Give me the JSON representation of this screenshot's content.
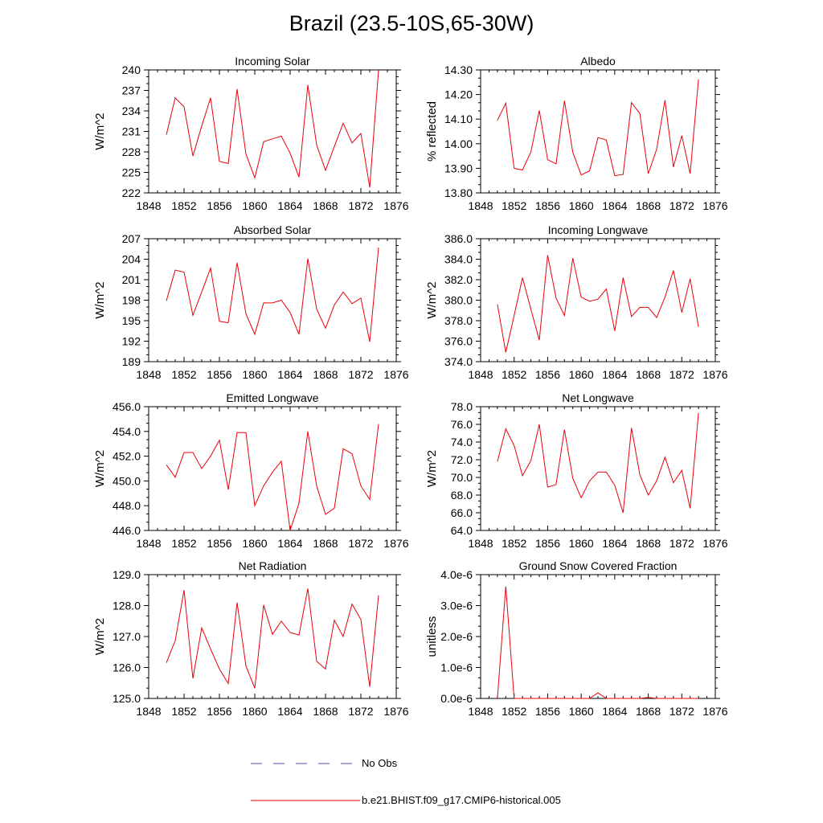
{
  "title": "Brazil (23.5-10S,65-30W)",
  "colors": {
    "model": "#e8000b",
    "obs": "#4a4aa8",
    "axis": "#000000"
  },
  "legend": {
    "obs_label": "No Obs",
    "model_label": "b.e21.BHIST.f09_g17.CMIP6-historical.005"
  },
  "chart_data": [
    {
      "type": "line",
      "title": "Incoming Solar",
      "xlabel": "",
      "ylabel": "W/m^2",
      "xlim": [
        1848,
        1876
      ],
      "ylim": [
        222,
        240
      ],
      "xticks": [
        1848,
        1852,
        1856,
        1860,
        1864,
        1868,
        1872,
        1876
      ],
      "xtick_labels": [
        "1848",
        "1852",
        "1856",
        "1860",
        "1864",
        "1868",
        "1872",
        "1876"
      ],
      "yticks": [
        222,
        225,
        228,
        231,
        234,
        237,
        240
      ],
      "ytick_labels": [
        "222",
        "225",
        "228",
        "231",
        "234",
        "237",
        "240"
      ],
      "series": [
        {
          "name": "b.e21.BHIST.f09_g17.CMIP6-historical.005",
          "x": [
            1850,
            1851,
            1852,
            1853,
            1854,
            1855,
            1856,
            1857,
            1858,
            1859,
            1860,
            1861,
            1862,
            1863,
            1864,
            1865,
            1866,
            1867,
            1868,
            1869,
            1870,
            1871,
            1872,
            1873,
            1874
          ],
          "values": [
            230.5,
            235.9,
            234.6,
            227.4,
            231.8,
            235.9,
            226.6,
            226.3,
            237.2,
            227.7,
            224.2,
            229.5,
            229.9,
            230.3,
            227.8,
            224.3,
            237.8,
            229.0,
            225.3,
            228.8,
            232.2,
            229.3,
            230.7,
            222.8,
            240.0
          ]
        }
      ]
    },
    {
      "type": "line",
      "title": "Albedo",
      "xlabel": "",
      "ylabel": "% reflected",
      "xlim": [
        1848,
        1876
      ],
      "ylim": [
        13.8,
        14.3
      ],
      "xticks": [
        1848,
        1852,
        1856,
        1860,
        1864,
        1868,
        1872,
        1876
      ],
      "xtick_labels": [
        "1848",
        "1852",
        "1856",
        "1860",
        "1864",
        "1868",
        "1872",
        "1876"
      ],
      "yticks": [
        13.8,
        13.9,
        14.0,
        14.1,
        14.2,
        14.3
      ],
      "ytick_labels": [
        "13.80",
        "13.90",
        "14.00",
        "14.10",
        "14.20",
        "14.30"
      ],
      "series": [
        {
          "name": "b.e21.BHIST.f09_g17.CMIP6-historical.005",
          "x": [
            1850,
            1851,
            1852,
            1853,
            1854,
            1855,
            1856,
            1857,
            1858,
            1859,
            1860,
            1861,
            1862,
            1863,
            1864,
            1865,
            1866,
            1867,
            1868,
            1869,
            1870,
            1871,
            1872,
            1873,
            1874
          ],
          "values": [
            14.095,
            14.165,
            13.9,
            13.893,
            13.967,
            14.135,
            13.935,
            13.918,
            14.175,
            13.965,
            13.873,
            13.89,
            14.025,
            14.015,
            13.87,
            13.875,
            14.167,
            14.123,
            13.878,
            13.977,
            14.177,
            13.905,
            14.033,
            13.878,
            14.262
          ]
        }
      ]
    },
    {
      "type": "line",
      "title": "Absorbed Solar",
      "xlabel": "",
      "ylabel": "W/m^2",
      "xlim": [
        1848,
        1876
      ],
      "ylim": [
        189,
        207
      ],
      "xticks": [
        1848,
        1852,
        1856,
        1860,
        1864,
        1868,
        1872,
        1876
      ],
      "xtick_labels": [
        "1848",
        "1852",
        "1856",
        "1860",
        "1864",
        "1868",
        "1872",
        "1876"
      ],
      "yticks": [
        189,
        192,
        195,
        198,
        201,
        204,
        207
      ],
      "ytick_labels": [
        "189",
        "192",
        "195",
        "198",
        "201",
        "204",
        "207"
      ],
      "series": [
        {
          "name": "b.e21.BHIST.f09_g17.CMIP6-historical.005",
          "x": [
            1850,
            1851,
            1852,
            1853,
            1854,
            1855,
            1856,
            1857,
            1858,
            1859,
            1860,
            1861,
            1862,
            1863,
            1864,
            1865,
            1866,
            1867,
            1868,
            1869,
            1870,
            1871,
            1872,
            1873,
            1874
          ],
          "values": [
            197.9,
            202.4,
            202.1,
            195.8,
            199.2,
            202.7,
            194.9,
            194.7,
            203.5,
            196.0,
            193.0,
            197.6,
            197.6,
            198.0,
            196.2,
            193.0,
            204.1,
            196.7,
            193.9,
            197.3,
            199.2,
            197.5,
            198.3,
            191.9,
            205.7
          ]
        }
      ]
    },
    {
      "type": "line",
      "title": "Incoming Longwave",
      "xlabel": "",
      "ylabel": "W/m^2",
      "xlim": [
        1848,
        1876
      ],
      "ylim": [
        374.0,
        386.0
      ],
      "xticks": [
        1848,
        1852,
        1856,
        1860,
        1864,
        1868,
        1872,
        1876
      ],
      "xtick_labels": [
        "1848",
        "1852",
        "1856",
        "1860",
        "1864",
        "1868",
        "1872",
        "1876"
      ],
      "yticks": [
        374.0,
        376.0,
        378.0,
        380.0,
        382.0,
        384.0,
        386.0
      ],
      "ytick_labels": [
        "374.0",
        "376.0",
        "378.0",
        "380.0",
        "382.0",
        "384.0",
        "386.0"
      ],
      "series": [
        {
          "name": "b.e21.BHIST.f09_g17.CMIP6-historical.005",
          "x": [
            1850,
            1851,
            1852,
            1853,
            1854,
            1855,
            1856,
            1857,
            1858,
            1859,
            1860,
            1861,
            1862,
            1863,
            1864,
            1865,
            1866,
            1867,
            1868,
            1869,
            1870,
            1871,
            1872,
            1873,
            1874
          ],
          "values": [
            379.6,
            374.9,
            378.5,
            382.2,
            379.1,
            376.1,
            384.4,
            380.2,
            378.5,
            384.1,
            380.3,
            379.9,
            380.1,
            381.1,
            377.0,
            382.2,
            378.4,
            379.3,
            379.3,
            378.3,
            380.3,
            382.9,
            378.8,
            382.1,
            377.4
          ]
        }
      ]
    },
    {
      "type": "line",
      "title": "Emitted Longwave",
      "xlabel": "",
      "ylabel": "W/m^2",
      "xlim": [
        1848,
        1876
      ],
      "ylim": [
        446.0,
        456.0
      ],
      "xticks": [
        1848,
        1852,
        1856,
        1860,
        1864,
        1868,
        1872,
        1876
      ],
      "xtick_labels": [
        "1848",
        "1852",
        "1856",
        "1860",
        "1864",
        "1868",
        "1872",
        "1876"
      ],
      "yticks": [
        446.0,
        448.0,
        450.0,
        452.0,
        454.0,
        456.0
      ],
      "ytick_labels": [
        "446.0",
        "448.0",
        "450.0",
        "452.0",
        "454.0",
        "456.0"
      ],
      "series": [
        {
          "name": "b.e21.BHIST.f09_g17.CMIP6-historical.005",
          "x": [
            1850,
            1851,
            1852,
            1853,
            1854,
            1855,
            1856,
            1857,
            1858,
            1859,
            1860,
            1861,
            1862,
            1863,
            1864,
            1865,
            1866,
            1867,
            1868,
            1869,
            1870,
            1871,
            1872,
            1873,
            1874
          ],
          "values": [
            451.3,
            450.3,
            452.3,
            452.3,
            451.0,
            452.0,
            453.3,
            449.3,
            453.9,
            453.9,
            448.0,
            449.6,
            450.7,
            451.6,
            446.0,
            448.2,
            454.0,
            449.6,
            447.3,
            447.8,
            452.6,
            452.2,
            449.6,
            448.5,
            454.6
          ]
        }
      ]
    },
    {
      "type": "line",
      "title": "Net Longwave",
      "xlabel": "",
      "ylabel": "W/m^2",
      "xlim": [
        1848,
        1876
      ],
      "ylim": [
        64.0,
        78.0
      ],
      "xticks": [
        1848,
        1852,
        1856,
        1860,
        1864,
        1868,
        1872,
        1876
      ],
      "xtick_labels": [
        "1848",
        "1852",
        "1856",
        "1860",
        "1864",
        "1868",
        "1872",
        "1876"
      ],
      "yticks": [
        64.0,
        66.0,
        68.0,
        70.0,
        72.0,
        74.0,
        76.0,
        78.0
      ],
      "ytick_labels": [
        "64.0",
        "66.0",
        "68.0",
        "70.0",
        "72.0",
        "74.0",
        "76.0",
        "78.0"
      ],
      "series": [
        {
          "name": "b.e21.BHIST.f09_g17.CMIP6-historical.005",
          "x": [
            1850,
            1851,
            1852,
            1853,
            1854,
            1855,
            1856,
            1857,
            1858,
            1859,
            1860,
            1861,
            1862,
            1863,
            1864,
            1865,
            1866,
            1867,
            1868,
            1869,
            1870,
            1871,
            1872,
            1873,
            1874
          ],
          "values": [
            71.8,
            75.5,
            73.6,
            70.2,
            71.9,
            76.0,
            68.9,
            69.2,
            75.4,
            69.9,
            67.7,
            69.6,
            70.6,
            70.6,
            69.1,
            66.0,
            75.6,
            70.3,
            68.0,
            69.6,
            72.3,
            69.4,
            70.8,
            66.5,
            77.3
          ]
        }
      ]
    },
    {
      "type": "line",
      "title": "Net Radiation",
      "xlabel": "",
      "ylabel": "W/m^2",
      "xlim": [
        1848,
        1876
      ],
      "ylim": [
        125.0,
        129.0
      ],
      "xticks": [
        1848,
        1852,
        1856,
        1860,
        1864,
        1868,
        1872,
        1876
      ],
      "xtick_labels": [
        "1848",
        "1852",
        "1856",
        "1860",
        "1864",
        "1868",
        "1872",
        "1876"
      ],
      "yticks": [
        125.0,
        126.0,
        127.0,
        128.0,
        129.0
      ],
      "ytick_labels": [
        "125.0",
        "126.0",
        "127.0",
        "128.0",
        "129.0"
      ],
      "series": [
        {
          "name": "b.e21.BHIST.f09_g17.CMIP6-historical.005",
          "x": [
            1850,
            1851,
            1852,
            1853,
            1854,
            1855,
            1856,
            1857,
            1858,
            1859,
            1860,
            1861,
            1862,
            1863,
            1864,
            1865,
            1866,
            1867,
            1868,
            1869,
            1870,
            1871,
            1872,
            1873,
            1874
          ],
          "values": [
            126.15,
            126.87,
            128.5,
            125.65,
            127.28,
            126.6,
            125.95,
            125.48,
            128.1,
            126.05,
            125.33,
            128.02,
            127.07,
            127.5,
            127.13,
            127.05,
            128.55,
            126.2,
            125.95,
            127.53,
            127.0,
            128.05,
            127.55,
            125.38,
            128.33
          ]
        }
      ]
    },
    {
      "type": "line",
      "title": "Ground Snow Covered Fraction",
      "xlabel": "",
      "ylabel": "unitless",
      "xlim": [
        1848,
        1876
      ],
      "ylim": [
        0.0,
        4e-06
      ],
      "xticks": [
        1848,
        1852,
        1856,
        1860,
        1864,
        1868,
        1872,
        1876
      ],
      "xtick_labels": [
        "1848",
        "1852",
        "1856",
        "1860",
        "1864",
        "1868",
        "1872",
        "1876"
      ],
      "yticks": [
        0.0,
        1e-06,
        2e-06,
        3e-06,
        4e-06
      ],
      "ytick_labels": [
        "0.0e-6",
        "1.0e-6",
        "2.0e-6",
        "3.0e-6",
        "4.0e-6"
      ],
      "series": [
        {
          "name": "b.e21.BHIST.f09_g17.CMIP6-historical.005",
          "x": [
            1850,
            1851,
            1852,
            1853,
            1854,
            1855,
            1856,
            1857,
            1858,
            1859,
            1860,
            1861,
            1862,
            1863,
            1864,
            1865,
            1866,
            1867,
            1868,
            1869,
            1870,
            1871,
            1872,
            1873,
            1874
          ],
          "values": [
            0,
            3.62e-06,
            0,
            0,
            0,
            0,
            0,
            0,
            0,
            0,
            0,
            0,
            1.8e-07,
            0,
            0,
            0,
            0,
            0,
            3e-08,
            0,
            0,
            0,
            0,
            0,
            0
          ]
        }
      ]
    }
  ]
}
